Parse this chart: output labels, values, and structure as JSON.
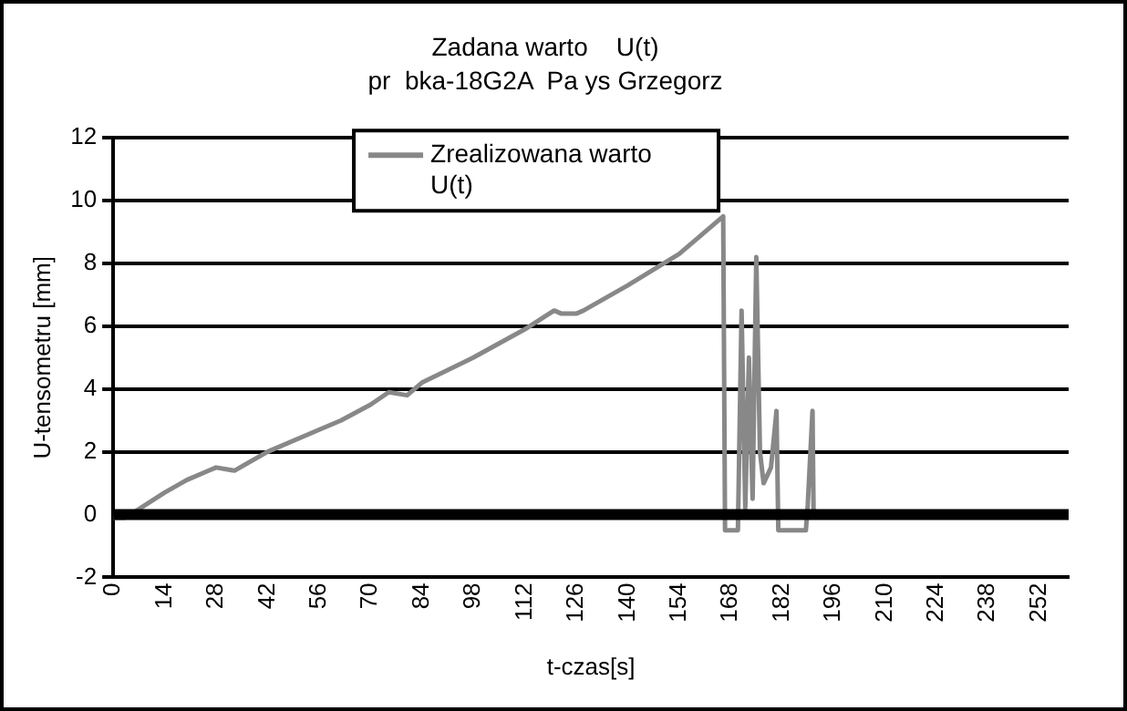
{
  "chart_data": {
    "type": "line",
    "title": "Zadana warto    U(t)",
    "subtitle": "pr  bka-18G2A  Pa ys Grzegorz",
    "xlabel": "t-czas[s]",
    "ylabel": "U-tensometru [mm]",
    "xlim": [
      0,
      260
    ],
    "xticks": [
      0,
      14,
      28,
      42,
      56,
      70,
      84,
      98,
      112,
      126,
      140,
      154,
      168,
      182,
      196,
      210,
      224,
      238,
      252
    ],
    "ylim": [
      -2,
      12
    ],
    "yticks": [
      -2,
      0,
      2,
      4,
      6,
      8,
      10,
      12
    ],
    "grid": "y",
    "legend": "top",
    "marker": "none",
    "line_style": "solid",
    "series": [
      {
        "color": "#000000",
        "x": [
          0,
          260
        ],
        "values": [
          0,
          0
        ]
      },
      {
        "name": "Zrealizowana warto  U(t)",
        "color": "#888888",
        "x": [
          0,
          3,
          6,
          14,
          20,
          26,
          28,
          33,
          42,
          56,
          62,
          70,
          75,
          80,
          84,
          98,
          112,
          120,
          122,
          126,
          128,
          140,
          154,
          166,
          166.5,
          170,
          171,
          172,
          173,
          174,
          175,
          176,
          177,
          179,
          180.5,
          181,
          188.5,
          189,
          190.3,
          190.6,
          200,
          260
        ],
        "values": [
          -0.1,
          -0.1,
          0.1,
          0.7,
          1.1,
          1.4,
          1.5,
          1.4,
          2.0,
          2.7,
          3.0,
          3.5,
          3.9,
          3.8,
          4.2,
          5.0,
          5.9,
          6.5,
          6.4,
          6.4,
          6.5,
          7.3,
          8.3,
          9.5,
          -0.5,
          -0.5,
          6.5,
          0.2,
          5.0,
          0.5,
          8.2,
          2.0,
          1.0,
          1.5,
          3.3,
          -0.5,
          -0.5,
          0.3,
          3.3,
          0,
          0,
          0.05
        ]
      }
    ]
  }
}
